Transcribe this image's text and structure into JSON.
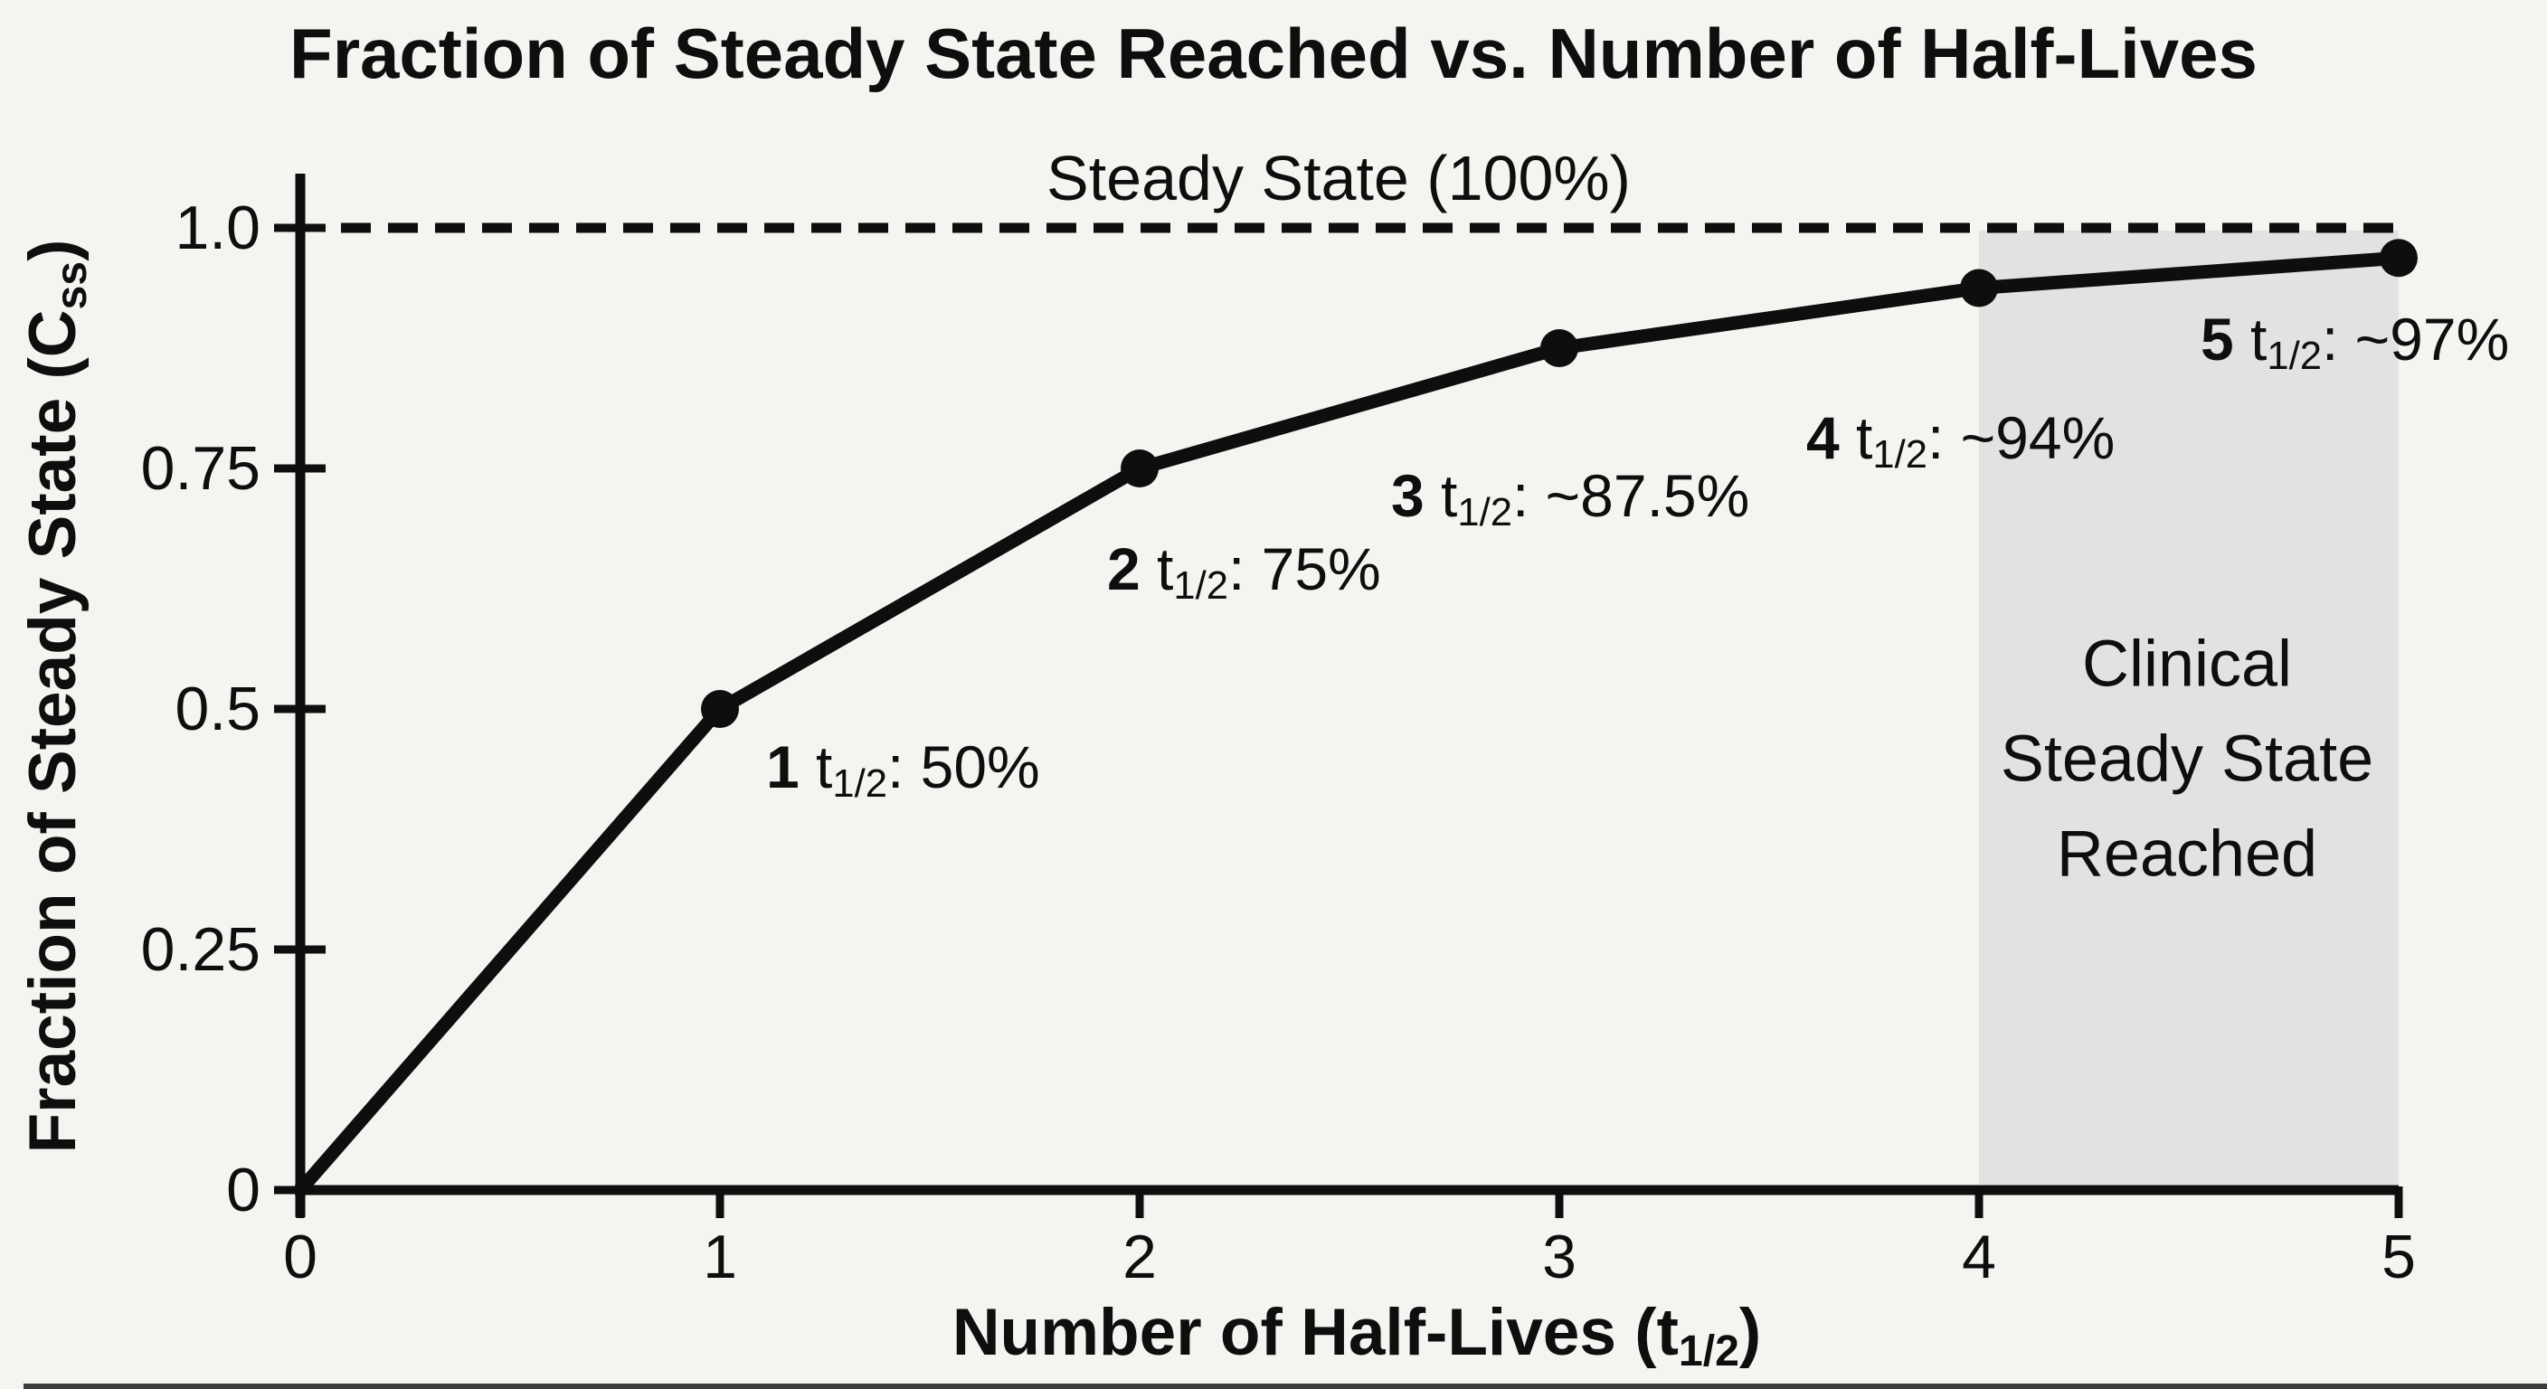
{
  "chart_data": {
    "type": "line",
    "title": "Fraction of Steady State Reached vs. Number of Half-Lives",
    "xlabel": {
      "pre": "Number of Half-Lives (t",
      "sub": "1/2",
      "post": ")"
    },
    "ylabel": {
      "pre": "Fraction of Steady State (C",
      "sub": "ss",
      "post": ")"
    },
    "x": [
      0,
      1,
      2,
      3,
      4,
      5
    ],
    "y": [
      0,
      0.5,
      0.75,
      0.875,
      0.9375,
      0.96875
    ],
    "marker_x": [
      1,
      2,
      3,
      4,
      5
    ],
    "xlim": [
      0,
      5
    ],
    "ylim": [
      0,
      1.0
    ],
    "xticks": [
      "0",
      "1",
      "2",
      "3",
      "4",
      "5"
    ],
    "yticks": [
      {
        "value": 0,
        "label": "0"
      },
      {
        "value": 0.25,
        "label": "0.25"
      },
      {
        "value": 0.5,
        "label": "0.5"
      },
      {
        "value": 0.75,
        "label": "0.75"
      },
      {
        "value": 1.0,
        "label": "1.0"
      }
    ],
    "reference_line": {
      "y": 1.0,
      "style": "dashed",
      "label": "Steady State (100%)"
    },
    "shaded_region": {
      "x0": 4,
      "x1": 5,
      "color": "#e3e2e0",
      "label_lines": [
        "Clinical",
        "Steady State",
        "Reached"
      ]
    },
    "point_annotations": [
      {
        "x": 1,
        "y": 0.5,
        "bold": "1",
        "t": "t",
        "sub": "1/2",
        "rest": ": 50%"
      },
      {
        "x": 2,
        "y": 0.75,
        "bold": "2",
        "t": "t",
        "sub": "1/2",
        "rest": ": 75%"
      },
      {
        "x": 3,
        "y": 0.875,
        "bold": "3",
        "t": "t",
        "sub": "1/2",
        "rest": ": ~87.5%"
      },
      {
        "x": 4,
        "y": 0.9375,
        "bold": "4",
        "t": "t",
        "sub": "1/2",
        "rest": ": ~94%"
      },
      {
        "x": 5,
        "y": 0.96875,
        "bold": "5",
        "t": "t",
        "sub": "1/2",
        "rest": ": ~97%"
      }
    ],
    "grid": false,
    "legend_position": "none",
    "colors": {
      "line": "#0e0e0e",
      "marker": "#0e0e0e",
      "text": "#0e0e0e",
      "background": "#f5f4f1",
      "region": "#e3e2e0"
    }
  }
}
